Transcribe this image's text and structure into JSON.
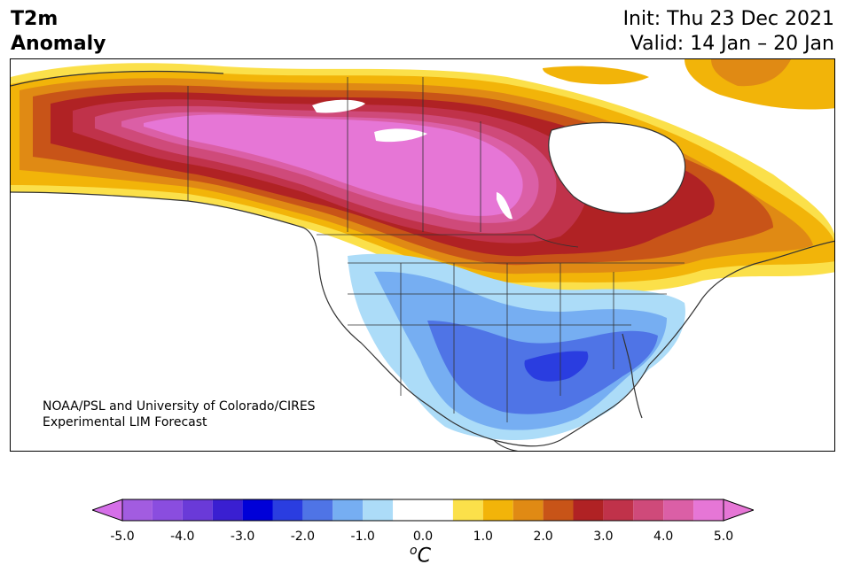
{
  "header": {
    "title_line1": "T2m",
    "title_line2": "Anomaly",
    "init": "Init: Thu 23 Dec 2021",
    "valid": "Valid: 14 Jan – 20 Jan"
  },
  "credit": {
    "line1": "NOAA/PSL and University of Colorado/CIRES",
    "line2": "Experimental LIM Forecast"
  },
  "colorbar": {
    "unit": "°C",
    "unit_base": "C",
    "unit_sup": "o",
    "ticks": [
      "-5.0",
      "-4.0",
      "-3.0",
      "-2.0",
      "-1.0",
      "0.0",
      "1.0",
      "2.0",
      "3.0",
      "4.0",
      "5.0"
    ],
    "bins": [
      {
        "from": -5.0,
        "to": -4.5,
        "color": "#a25ce0"
      },
      {
        "from": -4.5,
        "to": -4.0,
        "color": "#8a4ddf"
      },
      {
        "from": -4.0,
        "to": -3.5,
        "color": "#6a3ad8"
      },
      {
        "from": -3.5,
        "to": -3.0,
        "color": "#3a1fd1"
      },
      {
        "from": -3.0,
        "to": -2.5,
        "color": "#0000d8"
      },
      {
        "from": -2.5,
        "to": -2.0,
        "color": "#2a3de0"
      },
      {
        "from": -2.0,
        "to": -1.5,
        "color": "#4f74e6"
      },
      {
        "from": -1.5,
        "to": -1.0,
        "color": "#76aef2"
      },
      {
        "from": -1.0,
        "to": -0.5,
        "color": "#acdcf8"
      },
      {
        "from": -0.5,
        "to": 0.5,
        "color": "#ffffff"
      },
      {
        "from": 0.5,
        "to": 1.0,
        "color": "#fbe04a"
      },
      {
        "from": 1.0,
        "to": 1.5,
        "color": "#f2b409"
      },
      {
        "from": 1.5,
        "to": 2.0,
        "color": "#e08a14"
      },
      {
        "from": 2.0,
        "to": 2.5,
        "color": "#c85418"
      },
      {
        "from": 2.5,
        "to": 3.0,
        "color": "#b02224"
      },
      {
        "from": 3.0,
        "to": 3.5,
        "color": "#c0324a"
      },
      {
        "from": 3.5,
        "to": 4.0,
        "color": "#cf4a7a"
      },
      {
        "from": 4.0,
        "to": 4.5,
        "color": "#db5fa6"
      },
      {
        "from": 4.5,
        "to": 5.0,
        "color": "#e676d6"
      }
    ],
    "extend_min_color": "#d56fe8",
    "extend_max_color": "#e676d6"
  },
  "map": {
    "extent": "North America",
    "boundaries": "coastlines, national borders, state/province borders"
  }
}
